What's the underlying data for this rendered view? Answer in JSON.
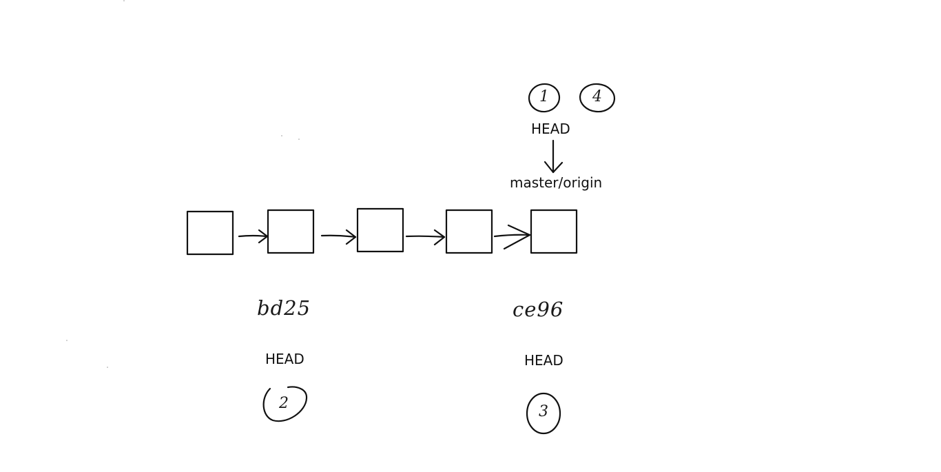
{
  "diagram": {
    "commits": [
      {
        "id": "commit-1"
      },
      {
        "id": "commit-2",
        "hash": "bd25",
        "head_label": "HEAD",
        "step": "2"
      },
      {
        "id": "commit-3"
      },
      {
        "id": "commit-4"
      },
      {
        "id": "commit-5",
        "hash": "ce96",
        "head_label": "HEAD",
        "step": "3"
      }
    ],
    "top": {
      "steps": [
        "1",
        "4"
      ],
      "head_label": "HEAD",
      "branch_label": "master/origin"
    }
  }
}
